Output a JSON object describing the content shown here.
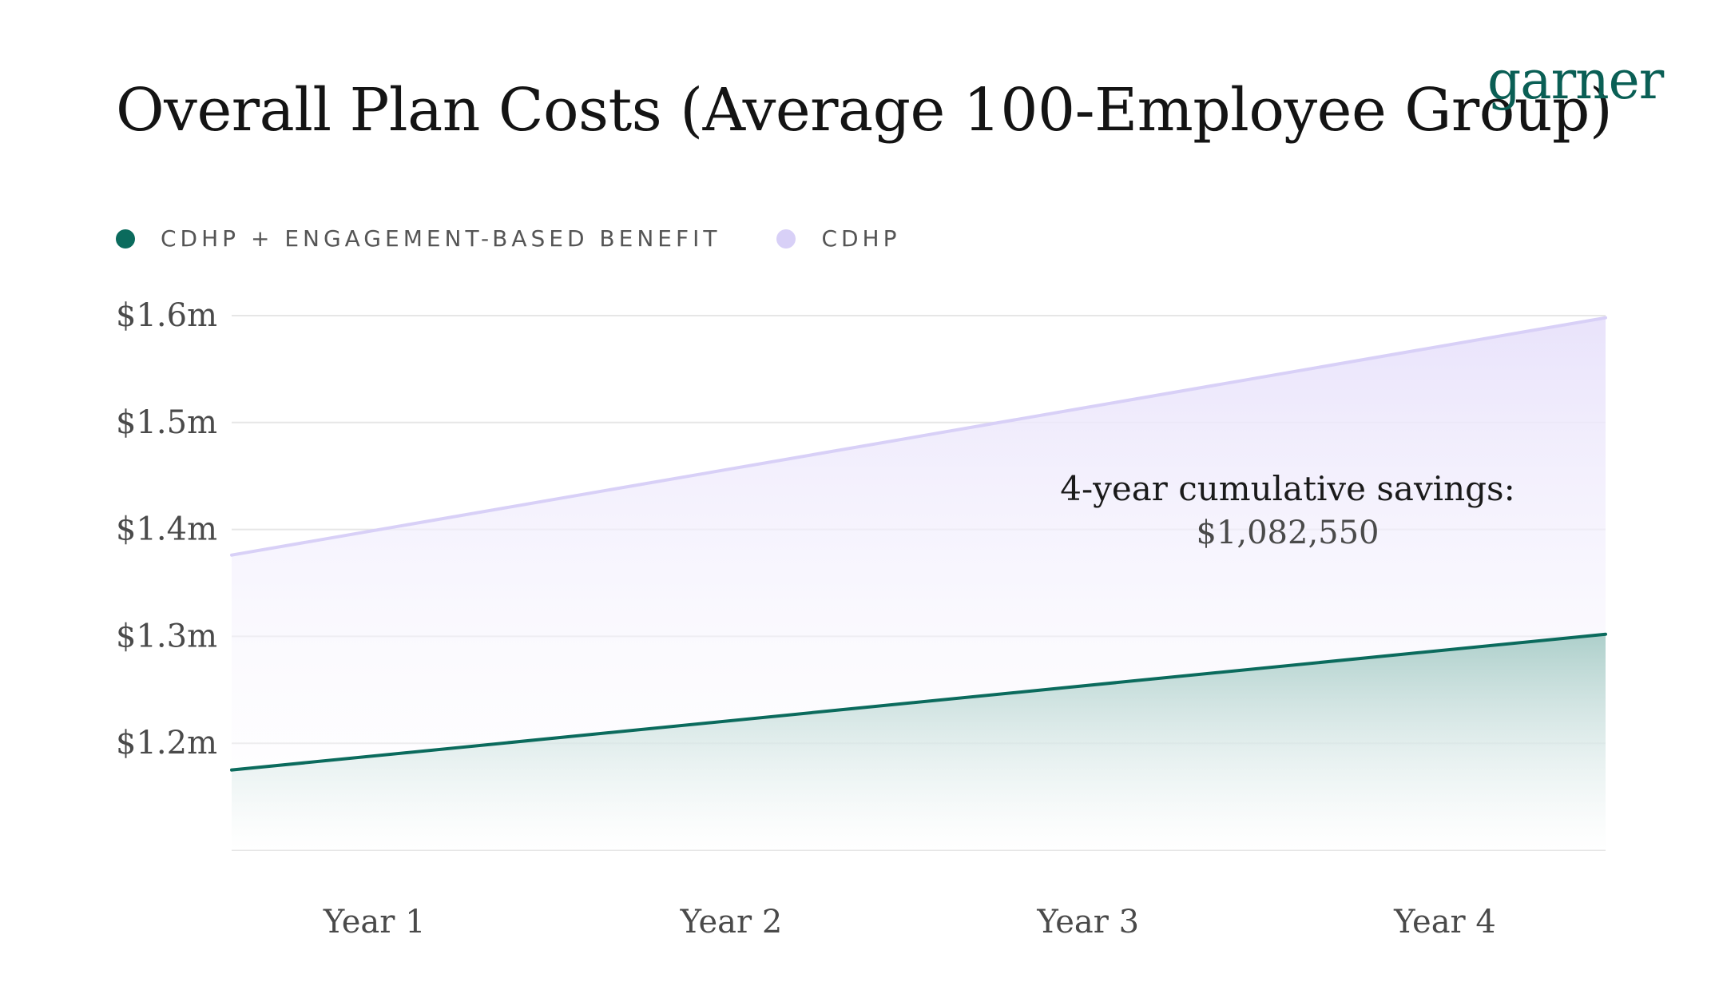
{
  "header": {
    "title": "Overall Plan Costs (Average 100-Employee Group)",
    "logo_text": "garner"
  },
  "colors": {
    "engagement": "#0b6b5d",
    "cdhp": "#d8d0f7",
    "grid": "#e6e6e6"
  },
  "annotation": {
    "line1": "4-year cumulative savings:",
    "line2": "$1,082,550"
  },
  "chart_data": {
    "type": "area",
    "title": "Overall Plan Costs (Average 100-Employee Group)",
    "categories": [
      "Year 1",
      "Year 2",
      "Year 3",
      "Year 4"
    ],
    "xlabel": "",
    "ylabel": "",
    "ylim": [
      1.1,
      1.6
    ],
    "yticks": [
      1.2,
      1.3,
      1.4,
      1.5,
      1.6
    ],
    "ytick_labels": [
      "$1.2m",
      "$1.3m",
      "$1.4m",
      "$1.5m",
      "$1.6m"
    ],
    "grid": true,
    "legend_position": "top-left",
    "x_domain": [
      0.6,
      4.45
    ],
    "series": [
      {
        "name": "CDHP + ENGAGEMENT-BASED BENEFIT",
        "color": "#0b6b5d",
        "x": [
          0.6,
          4.45
        ],
        "values": [
          1.175,
          1.302
        ]
      },
      {
        "name": "CDHP",
        "color": "#d8d0f7",
        "x": [
          0.6,
          4.45
        ],
        "values": [
          1.376,
          1.598
        ]
      }
    ]
  }
}
